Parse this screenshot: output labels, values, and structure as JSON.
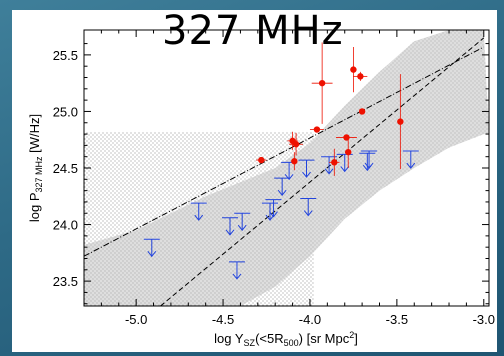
{
  "chart_data": {
    "type": "scatter",
    "title": "327 MHz",
    "xlabel": "log Y",
    "xlabel_sub": "SZ",
    "xlabel_mid": "(<5R",
    "xlabel_sub2": "500",
    "xlabel_end": ")  [sr Mpc",
    "xlabel_sup": "2",
    "xlabel_close": "]",
    "ylabel": "log P",
    "ylabel_sub": "327 MHz",
    "ylabel_end": "  [W/Hz]",
    "xlim": [
      -5.3,
      -2.97
    ],
    "ylim": [
      23.28,
      25.72
    ],
    "xticks": [
      "-5.0",
      "-4.5",
      "-4.0",
      "-3.5",
      "-3.0"
    ],
    "yticks": [
      "23.5",
      "24.0",
      "24.5",
      "25.0",
      "25.5"
    ],
    "grid": false,
    "colors": {
      "detections": "#ee1100",
      "upper_limits": "#2244dd",
      "band": "#d8d8d8",
      "lines": "#000000"
    },
    "detections": [
      {
        "x": -4.28,
        "y": 24.57,
        "xerr": 0.03,
        "yerr": 0.0
      },
      {
        "x": -4.1,
        "y": 24.74,
        "xerr": 0.03,
        "yerr": 0.08
      },
      {
        "x": -4.08,
        "y": 24.71,
        "xerr": 0.04,
        "yerr": 0.1
      },
      {
        "x": -4.09,
        "y": 24.56,
        "xerr": 0.0,
        "yerr": 0.08
      },
      {
        "x": -3.93,
        "y": 25.25,
        "xerr": 0.06,
        "yerr": 0.36
      },
      {
        "x": -3.96,
        "y": 24.84,
        "xerr": 0.04,
        "yerr": 0.0
      },
      {
        "x": -3.86,
        "y": 24.55,
        "xerr": 0.03,
        "yerr": 0.12
      },
      {
        "x": -3.79,
        "y": 24.77,
        "xerr": 0.06,
        "yerr": 0.0
      },
      {
        "x": -3.78,
        "y": 24.64,
        "xerr": 0.0,
        "yerr": 0.14
      },
      {
        "x": -3.75,
        "y": 25.37,
        "xerr": 0.0,
        "yerr": 0.2
      },
      {
        "x": -3.71,
        "y": 25.31,
        "xerr": 0.04,
        "yerr": 0.04
      },
      {
        "x": -3.7,
        "y": 25.0,
        "xerr": 0.0,
        "yerr": 0.0
      },
      {
        "x": -3.48,
        "y": 24.91,
        "xerr": 0.0,
        "yerr": 0.42
      }
    ],
    "upper_limits": [
      {
        "x": -4.91,
        "y": 23.87
      },
      {
        "x": -4.64,
        "y": 24.19
      },
      {
        "x": -4.46,
        "y": 24.06
      },
      {
        "x": -4.39,
        "y": 24.1
      },
      {
        "x": -4.42,
        "y": 23.67
      },
      {
        "x": -4.23,
        "y": 24.19
      },
      {
        "x": -4.21,
        "y": 24.22
      },
      {
        "x": -4.16,
        "y": 24.41
      },
      {
        "x": -4.12,
        "y": 24.55
      },
      {
        "x": -4.02,
        "y": 24.57
      },
      {
        "x": -4.01,
        "y": 24.23
      },
      {
        "x": -3.89,
        "y": 24.6
      },
      {
        "x": -3.8,
        "y": 24.62
      },
      {
        "x": -3.67,
        "y": 24.63
      },
      {
        "x": -3.66,
        "y": 24.65
      },
      {
        "x": -3.42,
        "y": 24.65
      }
    ],
    "fits": {
      "dashed": {
        "x": [
          -4.86,
          -3.0
        ],
        "y": [
          23.28,
          25.65
        ]
      },
      "dash_dot": {
        "x": [
          -5.3,
          -3.0
        ],
        "y": [
          23.72,
          25.57
        ]
      }
    },
    "band_upper": {
      "x": [
        -5.3,
        -5.0,
        -4.6,
        -4.2,
        -4.0,
        -3.8,
        -3.6,
        -3.4,
        -3.2,
        -3.0
      ],
      "y": [
        23.82,
        23.95,
        24.25,
        24.5,
        24.72,
        25.05,
        25.35,
        25.62,
        25.72,
        25.72
      ]
    },
    "band_lower": {
      "x": [
        -4.4,
        -4.2,
        -4.0,
        -3.8,
        -3.6,
        -3.4,
        -3.2,
        -3.0
      ],
      "y": [
        23.28,
        23.45,
        23.72,
        24.05,
        24.3,
        24.5,
        24.68,
        24.8
      ]
    },
    "dotted_region": {
      "x_left": -5.3,
      "x_right": -3.98,
      "y_top": 24.82
    }
  }
}
